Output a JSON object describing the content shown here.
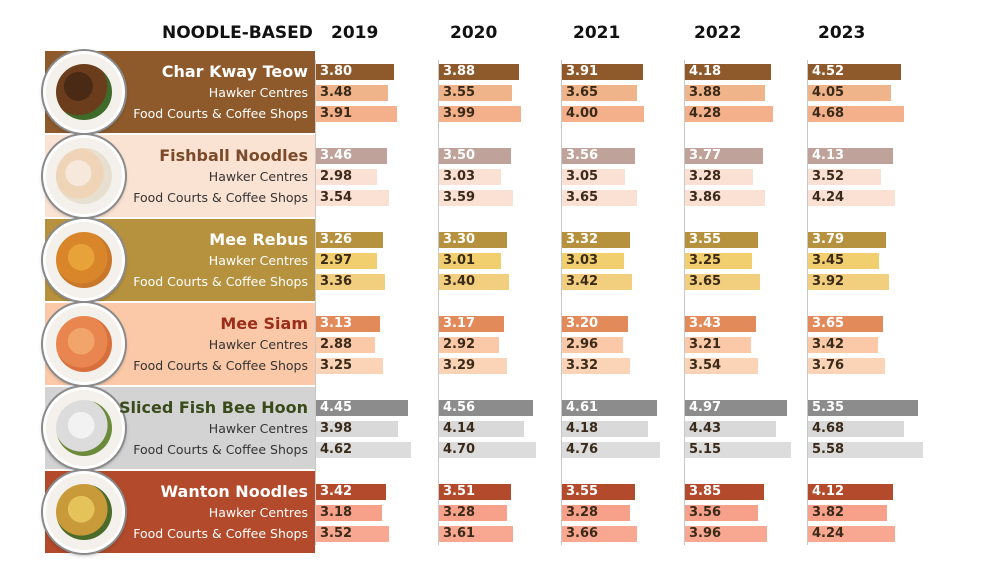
{
  "header": {
    "section_label": "NOODLE-BASED",
    "years": [
      "2019",
      "2020",
      "2021",
      "2022",
      "2023"
    ]
  },
  "row_labels": {
    "hawker": "Hawker Centres",
    "food_courts": "Food Courts & Coffee Shops"
  },
  "dishes": [
    {
      "name": "Char Kway Teow",
      "icon": "char-kway-teow-plate-icon",
      "band_color": "#8e5a2b",
      "name_color": "#ffffff",
      "sub_color": "#ffffff",
      "colors": [
        "#8e5a2b",
        "#f0b48a",
        "#f3b08a"
      ],
      "all": [
        3.8,
        3.88,
        3.91,
        4.18,
        4.52
      ],
      "hawker": [
        3.48,
        3.55,
        3.65,
        3.88,
        4.05
      ],
      "food_courts": [
        3.91,
        3.99,
        4.0,
        4.28,
        4.68
      ]
    },
    {
      "name": "Fishball Noodles",
      "icon": "fishball-noodles-plate-icon",
      "band_color": "#fbe3d3",
      "name_color": "#7a4a2a",
      "sub_color": "#333333",
      "colors": [
        "#bfa39a",
        "#fbe0d4",
        "#fbe0d4"
      ],
      "all": [
        3.46,
        3.5,
        3.56,
        3.77,
        4.13
      ],
      "hawker": [
        2.98,
        3.03,
        3.05,
        3.28,
        3.52
      ],
      "food_courts": [
        3.54,
        3.59,
        3.65,
        3.86,
        4.24
      ]
    },
    {
      "name": "Mee Rebus",
      "icon": "mee-rebus-plate-icon",
      "band_color": "#b7923e",
      "name_color": "#ffffff",
      "sub_color": "#ffffff",
      "colors": [
        "#b7923e",
        "#f2cf6e",
        "#f2cf7e"
      ],
      "all": [
        3.26,
        3.3,
        3.32,
        3.55,
        3.79
      ],
      "hawker": [
        2.97,
        3.01,
        3.03,
        3.25,
        3.45
      ],
      "food_courts": [
        3.36,
        3.4,
        3.42,
        3.65,
        3.92
      ]
    },
    {
      "name": "Mee Siam",
      "icon": "mee-siam-plate-icon",
      "band_color": "#fbc9a8",
      "name_color": "#9a2e1a",
      "sub_color": "#333333",
      "colors": [
        "#e38a5a",
        "#fbc9a8",
        "#fbd4b8"
      ],
      "all": [
        3.13,
        3.17,
        3.2,
        3.43,
        3.65
      ],
      "hawker": [
        2.88,
        2.92,
        2.96,
        3.21,
        3.42
      ],
      "food_courts": [
        3.25,
        3.29,
        3.32,
        3.54,
        3.76
      ]
    },
    {
      "name": "Sliced Fish Bee Hoon",
      "icon": "sliced-fish-bee-hoon-plate-icon",
      "band_color": "#d3d3d3",
      "name_color": "#3b4a1a",
      "sub_color": "#333333",
      "colors": [
        "#8c8c8c",
        "#d9d9d9",
        "#dcdcdc"
      ],
      "all": [
        4.45,
        4.56,
        4.61,
        4.97,
        5.35
      ],
      "hawker": [
        3.98,
        4.14,
        4.18,
        4.43,
        4.68
      ],
      "food_courts": [
        4.62,
        4.7,
        4.76,
        5.15,
        5.58
      ]
    },
    {
      "name": "Wanton Noodles",
      "icon": "wanton-noodles-plate-icon",
      "band_color": "#b34a2b",
      "name_color": "#ffffff",
      "sub_color": "#ffffff",
      "colors": [
        "#b34a2b",
        "#f7a08a",
        "#f8a890"
      ],
      "all": [
        3.42,
        3.51,
        3.55,
        3.85,
        4.12
      ],
      "hawker": [
        3.18,
        3.28,
        3.28,
        3.56,
        3.82
      ],
      "food_courts": [
        3.52,
        3.61,
        3.66,
        3.96,
        4.24
      ]
    }
  ],
  "chart_data": {
    "type": "bar",
    "title": "NOODLE-BASED",
    "categories": [
      "2019",
      "2020",
      "2021",
      "2022",
      "2023"
    ],
    "series": [
      {
        "name": "Char Kway Teow",
        "values": [
          3.8,
          3.88,
          3.91,
          4.18,
          4.52
        ]
      },
      {
        "name": "Char Kway Teow - Hawker Centres",
        "values": [
          3.48,
          3.55,
          3.65,
          3.88,
          4.05
        ]
      },
      {
        "name": "Char Kway Teow - Food Courts & Coffee Shops",
        "values": [
          3.91,
          3.99,
          4.0,
          4.28,
          4.68
        ]
      },
      {
        "name": "Fishball Noodles",
        "values": [
          3.46,
          3.5,
          3.56,
          3.77,
          4.13
        ]
      },
      {
        "name": "Fishball Noodles - Hawker Centres",
        "values": [
          2.98,
          3.03,
          3.05,
          3.28,
          3.52
        ]
      },
      {
        "name": "Fishball Noodles - Food Courts & Coffee Shops",
        "values": [
          3.54,
          3.59,
          3.65,
          3.86,
          4.24
        ]
      },
      {
        "name": "Mee Rebus",
        "values": [
          3.26,
          3.3,
          3.32,
          3.55,
          3.79
        ]
      },
      {
        "name": "Mee Rebus - Hawker Centres",
        "values": [
          2.97,
          3.01,
          3.03,
          3.25,
          3.45
        ]
      },
      {
        "name": "Mee Rebus - Food Courts & Coffee Shops",
        "values": [
          3.36,
          3.4,
          3.42,
          3.65,
          3.92
        ]
      },
      {
        "name": "Mee Siam",
        "values": [
          3.13,
          3.17,
          3.2,
          3.43,
          3.65
        ]
      },
      {
        "name": "Mee Siam - Hawker Centres",
        "values": [
          2.88,
          2.92,
          2.96,
          3.21,
          3.42
        ]
      },
      {
        "name": "Mee Siam - Food Courts & Coffee Shops",
        "values": [
          3.25,
          3.29,
          3.32,
          3.54,
          3.76
        ]
      },
      {
        "name": "Sliced Fish Bee Hoon",
        "values": [
          4.45,
          4.56,
          4.61,
          4.97,
          5.35
        ]
      },
      {
        "name": "Sliced Fish Bee Hoon - Hawker Centres",
        "values": [
          3.98,
          4.14,
          4.18,
          4.43,
          4.68
        ]
      },
      {
        "name": "Sliced Fish Bee Hoon - Food Courts & Coffee Shops",
        "values": [
          4.62,
          4.7,
          4.76,
          5.15,
          5.58
        ]
      },
      {
        "name": "Wanton Noodles",
        "values": [
          3.42,
          3.51,
          3.55,
          3.85,
          4.12
        ]
      },
      {
        "name": "Wanton Noodles - Hawker Centres",
        "values": [
          3.18,
          3.28,
          3.28,
          3.56,
          3.82
        ]
      },
      {
        "name": "Wanton Noodles - Food Courts & Coffee Shops",
        "values": [
          3.52,
          3.61,
          3.66,
          3.96,
          4.24
        ]
      }
    ],
    "xlabel": "",
    "ylabel": "",
    "grid": false,
    "legend": "none"
  }
}
